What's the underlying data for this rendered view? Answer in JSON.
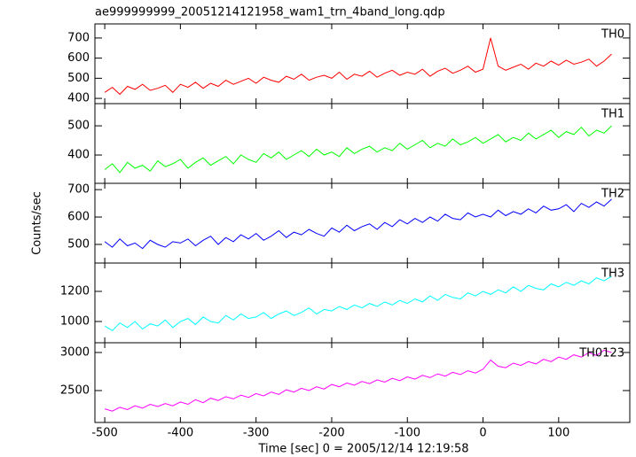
{
  "title": "ae999999999_20051214121958_wam1_trn_4band_long.qdp",
  "xlabel": "Time [sec] 0 = 2005/12/14 12:19:58",
  "ylabel": "Counts/sec",
  "chart_data": [
    {
      "type": "line",
      "xlim": [
        -513,
        194
      ],
      "xticks": [
        -500,
        -400,
        -300,
        -200,
        -100,
        0,
        100
      ],
      "ylim": [
        374,
        770
      ],
      "yticks": [
        400,
        500,
        600,
        700
      ],
      "x": [
        -500,
        -490,
        -480,
        -470,
        -460,
        -450,
        -440,
        -430,
        -420,
        -410,
        -400,
        -390,
        -380,
        -370,
        -360,
        -350,
        -340,
        -330,
        -320,
        -310,
        -300,
        -290,
        -280,
        -270,
        -260,
        -250,
        -240,
        -230,
        -220,
        -210,
        -200,
        -190,
        -180,
        -170,
        -160,
        -150,
        -140,
        -130,
        -120,
        -110,
        -100,
        -90,
        -80,
        -70,
        -60,
        -50,
        -40,
        -30,
        -20,
        -10,
        0,
        10,
        20,
        30,
        40,
        50,
        60,
        70,
        80,
        90,
        100,
        110,
        120,
        130,
        140,
        150,
        160,
        170
      ],
      "series": [
        {
          "name": "TH0",
          "color": "#ff0000",
          "values": [
            430,
            455,
            420,
            460,
            445,
            470,
            440,
            450,
            465,
            430,
            470,
            455,
            480,
            450,
            475,
            460,
            490,
            470,
            485,
            500,
            475,
            505,
            490,
            480,
            510,
            495,
            520,
            490,
            505,
            515,
            500,
            530,
            495,
            520,
            510,
            535,
            505,
            525,
            540,
            515,
            530,
            520,
            545,
            510,
            535,
            550,
            525,
            540,
            560,
            530,
            545,
            700,
            560,
            540,
            555,
            570,
            545,
            575,
            560,
            585,
            565,
            590,
            570,
            580,
            595,
            560,
            585,
            620
          ]
        }
      ]
    },
    {
      "type": "line",
      "xlim": [
        -513,
        194
      ],
      "xticks": [
        -500,
        -400,
        -300,
        -200,
        -100,
        0,
        100
      ],
      "ylim": [
        303,
        576
      ],
      "yticks": [
        400,
        500
      ],
      "x": [
        -500,
        -490,
        -480,
        -470,
        -460,
        -450,
        -440,
        -430,
        -420,
        -410,
        -400,
        -390,
        -380,
        -370,
        -360,
        -350,
        -340,
        -330,
        -320,
        -310,
        -300,
        -290,
        -280,
        -270,
        -260,
        -250,
        -240,
        -230,
        -220,
        -210,
        -200,
        -190,
        -180,
        -170,
        -160,
        -150,
        -140,
        -130,
        -120,
        -110,
        -100,
        -90,
        -80,
        -70,
        -60,
        -50,
        -40,
        -30,
        -20,
        -10,
        0,
        10,
        20,
        30,
        40,
        50,
        60,
        70,
        80,
        90,
        100,
        110,
        120,
        130,
        140,
        150,
        160,
        170
      ],
      "series": [
        {
          "name": "TH1",
          "color": "#00ff00",
          "values": [
            350,
            370,
            340,
            375,
            355,
            365,
            345,
            380,
            360,
            370,
            385,
            355,
            375,
            390,
            365,
            380,
            395,
            370,
            400,
            385,
            375,
            405,
            390,
            410,
            385,
            400,
            415,
            395,
            420,
            400,
            410,
            395,
            425,
            405,
            420,
            430,
            410,
            425,
            415,
            440,
            420,
            435,
            450,
            425,
            440,
            430,
            455,
            435,
            445,
            460,
            440,
            455,
            470,
            445,
            460,
            450,
            475,
            455,
            470,
            485,
            460,
            480,
            470,
            495,
            465,
            485,
            475,
            500
          ]
        }
      ]
    },
    {
      "type": "line",
      "xlim": [
        -513,
        194
      ],
      "xticks": [
        -500,
        -400,
        -300,
        -200,
        -100,
        0,
        100
      ],
      "ylim": [
        432,
        723
      ],
      "yticks": [
        500,
        600,
        700
      ],
      "x": [
        -500,
        -490,
        -480,
        -470,
        -460,
        -450,
        -440,
        -430,
        -420,
        -410,
        -400,
        -390,
        -380,
        -370,
        -360,
        -350,
        -340,
        -330,
        -320,
        -310,
        -300,
        -290,
        -280,
        -270,
        -260,
        -250,
        -240,
        -230,
        -220,
        -210,
        -200,
        -190,
        -180,
        -170,
        -160,
        -150,
        -140,
        -130,
        -120,
        -110,
        -100,
        -90,
        -80,
        -70,
        -60,
        -50,
        -40,
        -30,
        -20,
        -10,
        0,
        10,
        20,
        30,
        40,
        50,
        60,
        70,
        80,
        90,
        100,
        110,
        120,
        130,
        140,
        150,
        160,
        170
      ],
      "series": [
        {
          "name": "TH2",
          "color": "#0000ff",
          "values": [
            510,
            490,
            520,
            495,
            505,
            485,
            515,
            500,
            490,
            510,
            505,
            520,
            495,
            515,
            530,
            500,
            525,
            510,
            535,
            520,
            540,
            515,
            530,
            550,
            525,
            545,
            535,
            555,
            540,
            530,
            560,
            545,
            570,
            550,
            565,
            575,
            555,
            580,
            565,
            590,
            575,
            595,
            580,
            600,
            585,
            610,
            595,
            590,
            615,
            600,
            610,
            600,
            625,
            605,
            620,
            610,
            630,
            615,
            640,
            625,
            630,
            645,
            620,
            650,
            635,
            655,
            640,
            665
          ]
        }
      ]
    },
    {
      "type": "line",
      "xlim": [
        -513,
        194
      ],
      "xticks": [
        -500,
        -400,
        -300,
        -200,
        -100,
        0,
        100
      ],
      "ylim": [
        859,
        1388
      ],
      "yticks": [
        1000,
        1200
      ],
      "x": [
        -500,
        -490,
        -480,
        -470,
        -460,
        -450,
        -440,
        -430,
        -420,
        -410,
        -400,
        -390,
        -380,
        -370,
        -360,
        -350,
        -340,
        -330,
        -320,
        -310,
        -300,
        -290,
        -280,
        -270,
        -260,
        -250,
        -240,
        -230,
        -220,
        -210,
        -200,
        -190,
        -180,
        -170,
        -160,
        -150,
        -140,
        -130,
        -120,
        -110,
        -100,
        -90,
        -80,
        -70,
        -60,
        -50,
        -40,
        -30,
        -20,
        -10,
        0,
        10,
        20,
        30,
        40,
        50,
        60,
        70,
        80,
        90,
        100,
        110,
        120,
        130,
        140,
        150,
        160,
        170
      ],
      "series": [
        {
          "name": "TH3",
          "color": "#00ffff",
          "values": [
            970,
            940,
            990,
            960,
            1000,
            950,
            985,
            970,
            1010,
            960,
            1000,
            1020,
            980,
            1030,
            1000,
            990,
            1040,
            1010,
            1050,
            1020,
            1030,
            1060,
            1020,
            1050,
            1070,
            1040,
            1060,
            1090,
            1050,
            1080,
            1070,
            1100,
            1080,
            1110,
            1090,
            1120,
            1100,
            1130,
            1110,
            1140,
            1120,
            1150,
            1130,
            1170,
            1140,
            1180,
            1160,
            1150,
            1190,
            1170,
            1200,
            1180,
            1210,
            1190,
            1230,
            1200,
            1240,
            1220,
            1210,
            1250,
            1230,
            1260,
            1240,
            1270,
            1250,
            1290,
            1270,
            1300
          ]
        }
      ]
    },
    {
      "type": "line",
      "xlim": [
        -513,
        194
      ],
      "xticks": [
        -500,
        -400,
        -300,
        -200,
        -100,
        0,
        100
      ],
      "ylim": [
        2081,
        3128
      ],
      "yticks": [
        2500,
        3000
      ],
      "x": [
        -500,
        -490,
        -480,
        -470,
        -460,
        -450,
        -440,
        -430,
        -420,
        -410,
        -400,
        -390,
        -380,
        -370,
        -360,
        -350,
        -340,
        -330,
        -320,
        -310,
        -300,
        -290,
        -280,
        -270,
        -260,
        -250,
        -240,
        -230,
        -220,
        -210,
        -200,
        -190,
        -180,
        -170,
        -160,
        -150,
        -140,
        -130,
        -120,
        -110,
        -100,
        -90,
        -80,
        -70,
        -60,
        -50,
        -40,
        -30,
        -20,
        -10,
        0,
        10,
        20,
        30,
        40,
        50,
        60,
        70,
        80,
        90,
        100,
        110,
        120,
        130,
        140,
        150,
        160,
        170
      ],
      "series": [
        {
          "name": "TH0123",
          "color": "#ff00ff",
          "values": [
            2260,
            2230,
            2280,
            2250,
            2300,
            2270,
            2320,
            2290,
            2330,
            2300,
            2350,
            2320,
            2380,
            2340,
            2400,
            2370,
            2420,
            2390,
            2440,
            2410,
            2460,
            2430,
            2480,
            2450,
            2510,
            2480,
            2530,
            2500,
            2550,
            2520,
            2580,
            2550,
            2600,
            2570,
            2620,
            2590,
            2640,
            2610,
            2660,
            2630,
            2680,
            2650,
            2700,
            2670,
            2720,
            2690,
            2740,
            2710,
            2760,
            2730,
            2780,
            2900,
            2820,
            2800,
            2860,
            2830,
            2880,
            2850,
            2910,
            2880,
            2940,
            2910,
            2970,
            2940,
            3000,
            2960,
            3030,
            3000
          ]
        }
      ]
    }
  ]
}
